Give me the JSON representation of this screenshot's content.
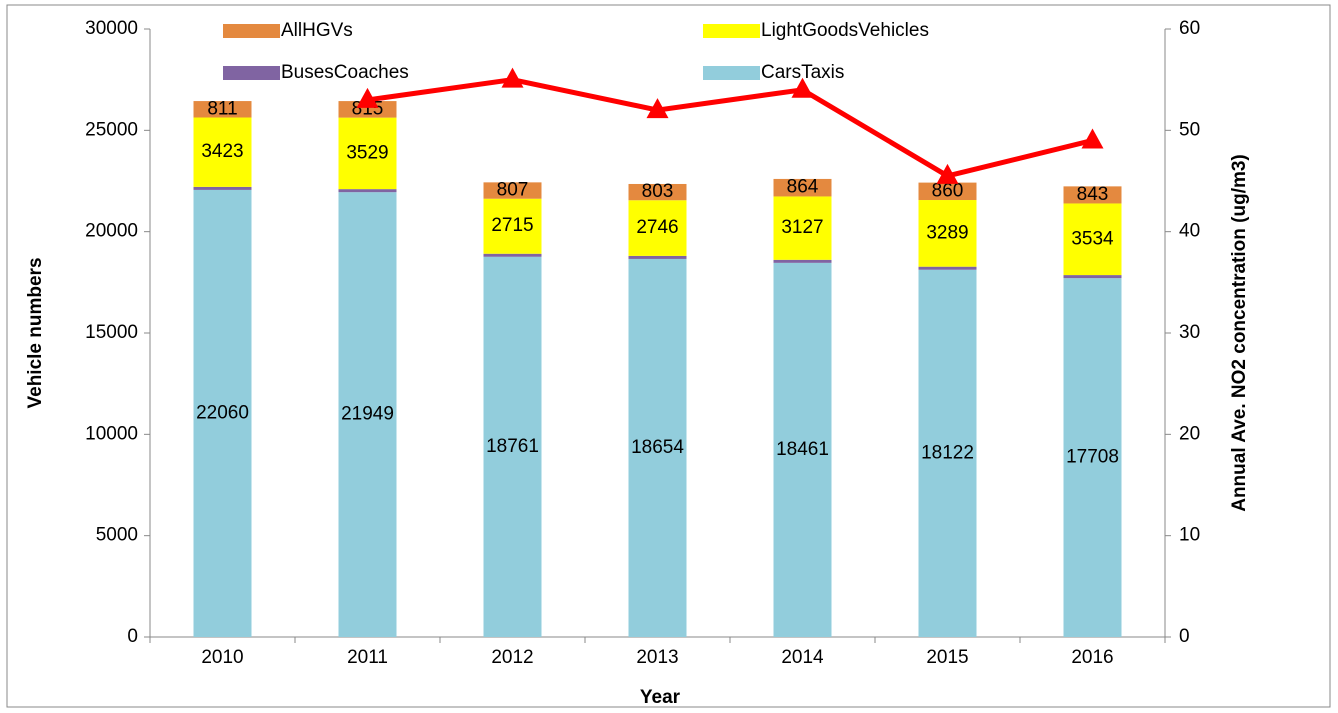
{
  "chart_data": {
    "type": "bar",
    "stacked": true,
    "x_label": "Year",
    "y_label": "Vehicle numbers",
    "y2_label": "Annual Ave. NO2 concentration (ug/m3)",
    "categories": [
      "2010",
      "2011",
      "2012",
      "2013",
      "2014",
      "2015",
      "2016"
    ],
    "series": [
      {
        "name": "CarsTaxis",
        "color": "#92cddc",
        "values": [
          22060,
          21949,
          18761,
          18654,
          18461,
          18122,
          17708
        ]
      },
      {
        "name": "BusesCoaches",
        "color": "#8064a2",
        "values": [
          150,
          150,
          150,
          150,
          150,
          150,
          150
        ]
      },
      {
        "name": "LightGoodsVehicles",
        "color": "#ffff00",
        "values": [
          3423,
          3529,
          2715,
          2746,
          3127,
          3289,
          3534
        ]
      },
      {
        "name": "AllHGVs",
        "color": "#e4893f",
        "values": [
          811,
          815,
          807,
          803,
          864,
          860,
          843
        ]
      }
    ],
    "line": {
      "axis": "y2",
      "color": "#ff0000",
      "values": [
        null,
        53,
        55,
        52,
        54,
        45.5,
        49
      ]
    },
    "ylim": [
      0,
      30000
    ],
    "yticks": [
      0,
      5000,
      10000,
      15000,
      20000,
      25000,
      30000
    ],
    "y2lim": [
      0,
      60
    ],
    "y2ticks": [
      0,
      10,
      20,
      30,
      40,
      50,
      60
    ]
  }
}
